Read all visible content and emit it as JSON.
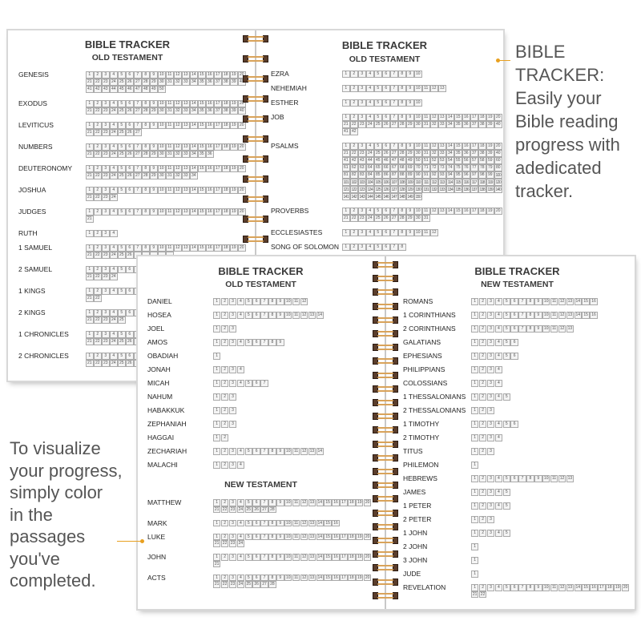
{
  "back_notebook": {
    "left_page": {
      "title": "BIBLE TRACKER",
      "subtitle": "OLD TESTAMENT",
      "books": [
        {
          "name": "GENESIS",
          "chapters": 50
        },
        {
          "name": "EXODUS",
          "chapters": 40
        },
        {
          "name": "LEVITICUS",
          "chapters": 27
        },
        {
          "name": "NUMBERS",
          "chapters": 36
        },
        {
          "name": "DEUTERONOMY",
          "chapters": 34
        },
        {
          "name": "JOSHUA",
          "chapters": 24
        },
        {
          "name": "JUDGES",
          "chapters": 21
        },
        {
          "name": "RUTH",
          "chapters": 4
        },
        {
          "name": "1 SAMUEL",
          "chapters": 31
        },
        {
          "name": "2 SAMUEL",
          "chapters": 24
        },
        {
          "name": "1 KINGS",
          "chapters": 22
        },
        {
          "name": "2 KINGS",
          "chapters": 25
        },
        {
          "name": "1 CHRONICLES",
          "chapters": 29
        },
        {
          "name": "2 CHRONICLES",
          "chapters": 36
        }
      ]
    },
    "right_page": {
      "title": "BIBLE TRACKER",
      "subtitle": "OLD TESTAMENT",
      "books": [
        {
          "name": "EZRA",
          "chapters": 10
        },
        {
          "name": "NEHEMIAH",
          "chapters": 13
        },
        {
          "name": "ESTHER",
          "chapters": 10
        },
        {
          "name": "JOB",
          "chapters": 42
        },
        {
          "name": "PSALMS",
          "chapters": 150
        },
        {
          "name": "PROVERBS",
          "chapters": 31
        },
        {
          "name": "ECCLESIASTES",
          "chapters": 12
        },
        {
          "name": "SONG OF SOLOMON",
          "chapters": 8
        }
      ]
    }
  },
  "front_notebook": {
    "left_page": {
      "title": "BIBLE TRACKER",
      "subtitle": "OLD TESTAMENT",
      "books": [
        {
          "name": "DANIEL",
          "chapters": 12
        },
        {
          "name": "HOSEA",
          "chapters": 14
        },
        {
          "name": "JOEL",
          "chapters": 3
        },
        {
          "name": "AMOS",
          "chapters": 9
        },
        {
          "name": "OBADIAH",
          "chapters": 1
        },
        {
          "name": "JONAH",
          "chapters": 4
        },
        {
          "name": "MICAH",
          "chapters": 7
        },
        {
          "name": "NAHUM",
          "chapters": 3
        },
        {
          "name": "HABAKKUK",
          "chapters": 3
        },
        {
          "name": "ZEPHANIAH",
          "chapters": 3
        },
        {
          "name": "HAGGAI",
          "chapters": 2
        },
        {
          "name": "ZECHARIAH",
          "chapters": 14
        },
        {
          "name": "MALACHI",
          "chapters": 4
        }
      ],
      "section2_title": "NEW TESTAMENT",
      "books2": [
        {
          "name": "MATTHEW",
          "chapters": 28
        },
        {
          "name": "MARK",
          "chapters": 16
        },
        {
          "name": "LUKE",
          "chapters": 24
        },
        {
          "name": "JOHN",
          "chapters": 21
        },
        {
          "name": "ACTS",
          "chapters": 28
        }
      ]
    },
    "right_page": {
      "title": "BIBLE TRACKER",
      "subtitle": "NEW TESTAMENT",
      "books": [
        {
          "name": "ROMANS",
          "chapters": 16
        },
        {
          "name": "1 CORINTHIANS",
          "chapters": 16
        },
        {
          "name": "2 CORINTHIANS",
          "chapters": 13
        },
        {
          "name": "GALATIANS",
          "chapters": 6
        },
        {
          "name": "EPHESIANS",
          "chapters": 6
        },
        {
          "name": "PHILIPPIANS",
          "chapters": 4
        },
        {
          "name": "COLOSSIANS",
          "chapters": 4
        },
        {
          "name": "1 THESSALONIANS",
          "chapters": 5
        },
        {
          "name": "2 THESSALONIANS",
          "chapters": 3
        },
        {
          "name": "1 TIMOTHY",
          "chapters": 6
        },
        {
          "name": "2 TIMOTHY",
          "chapters": 4
        },
        {
          "name": "TITUS",
          "chapters": 3
        },
        {
          "name": "PHILEMON",
          "chapters": 1
        },
        {
          "name": "HEBREWS",
          "chapters": 13
        },
        {
          "name": "JAMES",
          "chapters": 5
        },
        {
          "name": "1 PETER",
          "chapters": 5
        },
        {
          "name": "2 PETER",
          "chapters": 3
        },
        {
          "name": "1 JOHN",
          "chapters": 5
        },
        {
          "name": "2 JOHN",
          "chapters": 1
        },
        {
          "name": "3 JOHN",
          "chapters": 1
        },
        {
          "name": "JUDE",
          "chapters": 1
        },
        {
          "name": "REVELATION",
          "chapters": 22
        }
      ]
    }
  },
  "callout_right": {
    "lines": [
      "BIBLE",
      "TRACKER:",
      "Easily your",
      "Bible reading",
      "progress with",
      "adedicated",
      "tracker."
    ]
  },
  "callout_left": {
    "lines": [
      "To visualize",
      "your progress,",
      "simply color",
      "in the",
      "passages",
      "you've",
      "completed."
    ]
  },
  "colors": {
    "accent": "#e8a020",
    "ring_gold": "#d9a35a",
    "ring_dark": "#5a3d2b",
    "box_border": "#aaaaaa"
  }
}
